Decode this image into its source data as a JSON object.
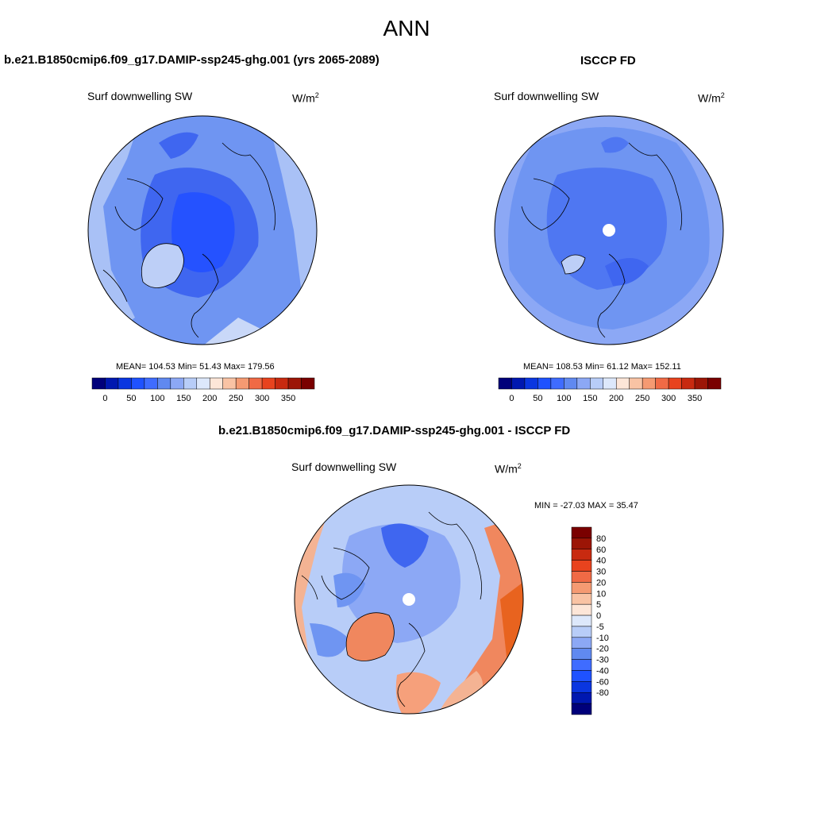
{
  "title": "ANN",
  "colors": {
    "abs_palette": [
      "#00007a",
      "#0018b0",
      "#0a36e0",
      "#1f52ff",
      "#3f6cff",
      "#6089f0",
      "#8ca8f5",
      "#b8cdf8",
      "#dde8fb",
      "#fde6d8",
      "#f9c3a4",
      "#f59a72",
      "#f06a45",
      "#e8431e",
      "#c82a10",
      "#9c1506",
      "#7a0000"
    ],
    "diff_palette": [
      "#00007a",
      "#0018b0",
      "#0a36e0",
      "#1f52ff",
      "#3f6cff",
      "#6089f0",
      "#8ca8f5",
      "#b8cdf8",
      "#dde8fb",
      "#fde6d8",
      "#f9c3a4",
      "#f59a72",
      "#f06a45",
      "#e8431e",
      "#c82a10",
      "#9c1506",
      "#7a0000"
    ]
  },
  "panels": {
    "model": {
      "title": "b.e21.B1850cmip6.f09_g17.DAMIP-ssp245-ghg.001 (yrs 2065-2089)",
      "varname": "Surf downwelling SW",
      "units_base": "W/m",
      "units_exp": "2",
      "stats": "MEAN= 104.53  Min=  51.43  Max= 179.56",
      "colorbar_ticks": [
        "0",
        "50",
        "100",
        "150",
        "200",
        "250",
        "300",
        "350"
      ]
    },
    "obs": {
      "title": "ISCCP FD",
      "varname": "Surf downwelling SW",
      "units_base": "W/m",
      "units_exp": "2",
      "stats": "MEAN= 108.53  Min=  61.12  Max= 152.11",
      "colorbar_ticks": [
        "0",
        "50",
        "100",
        "150",
        "200",
        "250",
        "300",
        "350"
      ]
    },
    "diff": {
      "title": "b.e21.B1850cmip6.f09_g17.DAMIP-ssp245-ghg.001 - ISCCP FD",
      "varname": "Surf downwelling SW",
      "units_base": "W/m",
      "units_exp": "2",
      "stats": "MIN = -27.03 MAX =  35.47",
      "colorbar_labels": [
        "80",
        "60",
        "40",
        "30",
        "20",
        "10",
        "5",
        "0",
        "-5",
        "-10",
        "-20",
        "-30",
        "-40",
        "-60",
        "-80"
      ]
    }
  }
}
